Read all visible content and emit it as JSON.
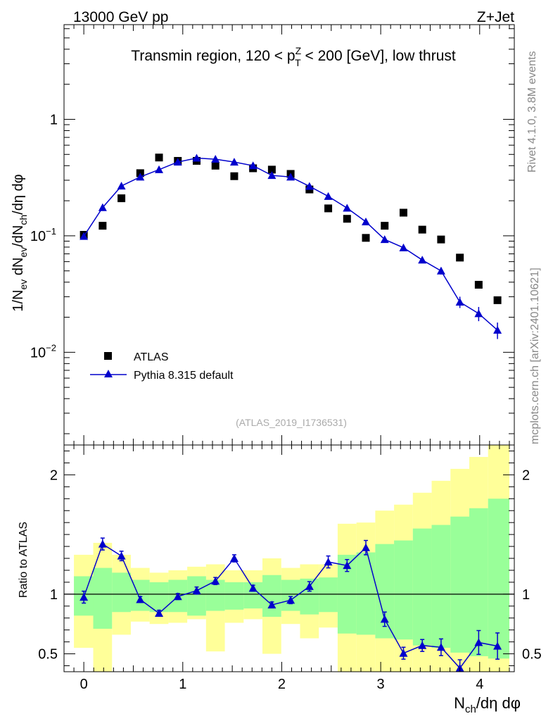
{
  "header": {
    "left": "13000 GeV pp",
    "right": "Z+Jet"
  },
  "side_labels": {
    "top": "Rivet 4.1.0,  3.8M events",
    "bottom": "mcplots.cern.ch [arXiv:2401.10621]"
  },
  "chart_data": [
    {
      "type": "scatter",
      "panel": "main",
      "title": {
        "pre": "Transmin region, 120 < p",
        "sup": "Z",
        "sub": "T",
        "post": " < 200 [GeV], low thrust"
      },
      "ylabel": {
        "p1": "1/N",
        "s1": "ev",
        "p2": " dN",
        "s2": "ev",
        "p3": "/dN",
        "s3": "ch",
        "p4": "/dη dφ"
      },
      "yscale": "log",
      "ylim": [
        0.0016,
        6.5
      ],
      "xlim": [
        -0.2,
        4.35
      ],
      "yticks": [
        {
          "value": 1,
          "label": "1"
        },
        {
          "value": 0.1,
          "label_base": "10",
          "label_exp": "−1"
        },
        {
          "value": 0.01,
          "label_base": "10",
          "label_exp": "−2"
        }
      ],
      "watermark": "(ATLAS_2019_I1736531)",
      "legend": {
        "position": "bottom-left",
        "entries": [
          "ATLAS",
          "Pythia 8.315 default"
        ]
      },
      "series": [
        {
          "name": "ATLAS",
          "marker": "square",
          "color": "#000000",
          "x": [
            0.0,
            0.19,
            0.38,
            0.57,
            0.76,
            0.95,
            1.14,
            1.33,
            1.52,
            1.71,
            1.9,
            2.09,
            2.28,
            2.47,
            2.66,
            2.85,
            3.04,
            3.23,
            3.42,
            3.61,
            3.8,
            3.99,
            4.18
          ],
          "y": [
            0.102,
            0.122,
            0.21,
            0.345,
            0.47,
            0.44,
            0.44,
            0.4,
            0.325,
            0.38,
            0.37,
            0.34,
            0.25,
            0.172,
            0.14,
            0.096,
            0.122,
            0.158,
            0.113,
            0.093,
            0.065,
            0.038,
            0.028
          ]
        },
        {
          "name": "Pythia 8.315 default",
          "marker": "triangle",
          "color": "#0000cc",
          "x": [
            0.0,
            0.19,
            0.38,
            0.57,
            0.76,
            0.95,
            1.14,
            1.33,
            1.52,
            1.71,
            1.9,
            2.09,
            2.28,
            2.47,
            2.66,
            2.85,
            3.04,
            3.23,
            3.42,
            3.61,
            3.8,
            3.99,
            4.18
          ],
          "y": [
            0.099,
            0.175,
            0.268,
            0.32,
            0.37,
            0.43,
            0.465,
            0.455,
            0.43,
            0.4,
            0.33,
            0.32,
            0.266,
            0.218,
            0.173,
            0.132,
            0.093,
            0.079,
            0.062,
            0.05,
            0.027,
            0.0215,
            0.0155
          ],
          "err": [
            0.004,
            0.005,
            0.006,
            0.007,
            0.007,
            0.008,
            0.008,
            0.008,
            0.008,
            0.008,
            0.007,
            0.007,
            0.006,
            0.006,
            0.005,
            0.005,
            0.004,
            0.004,
            0.0035,
            0.0035,
            0.003,
            0.003,
            0.0025
          ]
        }
      ]
    },
    {
      "type": "line",
      "panel": "ratio",
      "ylabel": "Ratio to ATLAS",
      "xlabel": {
        "p1": "N",
        "s1": "ch",
        "p2": "/dη dφ"
      },
      "xlim": [
        -0.2,
        4.35
      ],
      "ylim": [
        0.35,
        2.25
      ],
      "yticks": [
        0.5,
        1,
        2
      ],
      "xticks": [
        0,
        1,
        2,
        3,
        4
      ],
      "reference": 1,
      "bands": {
        "edges": [
          -0.1,
          0.095,
          0.285,
          0.475,
          0.665,
          0.855,
          1.045,
          1.235,
          1.425,
          1.615,
          1.805,
          1.995,
          2.185,
          2.375,
          2.565,
          2.755,
          2.945,
          3.135,
          3.325,
          3.515,
          3.705,
          3.895,
          4.085,
          4.3
        ],
        "inner_low": [
          0.82,
          0.71,
          0.85,
          0.86,
          0.85,
          0.85,
          0.82,
          0.86,
          0.87,
          0.88,
          0.81,
          0.86,
          0.83,
          0.85,
          0.67,
          0.66,
          0.63,
          0.62,
          0.57,
          0.55,
          0.51,
          0.48,
          0.46
        ],
        "inner_high": [
          1.15,
          1.22,
          1.18,
          1.12,
          1.1,
          1.12,
          1.15,
          1.12,
          1.1,
          1.1,
          1.16,
          1.12,
          1.13,
          1.14,
          1.33,
          1.35,
          1.42,
          1.45,
          1.55,
          1.58,
          1.65,
          1.72,
          1.8
        ],
        "outer_low": [
          0.55,
          0.18,
          0.66,
          0.77,
          0.75,
          0.76,
          0.79,
          0.52,
          0.76,
          0.79,
          0.5,
          0.75,
          0.63,
          0.72,
          0.28,
          0.28,
          0.28,
          0.28,
          0.28,
          0.28,
          0.28,
          0.28,
          0.28
        ],
        "outer_high": [
          1.33,
          1.43,
          1.33,
          1.22,
          1.18,
          1.2,
          1.23,
          1.25,
          1.2,
          1.2,
          1.3,
          1.22,
          1.25,
          1.25,
          1.59,
          1.6,
          1.7,
          1.75,
          1.85,
          1.95,
          2.05,
          2.15,
          2.25
        ]
      },
      "series": [
        {
          "name": "Pythia 8.315 default",
          "marker": "triangle",
          "color": "#0000cc",
          "x": [
            0.0,
            0.19,
            0.38,
            0.57,
            0.76,
            0.95,
            1.14,
            1.33,
            1.52,
            1.71,
            1.9,
            2.09,
            2.28,
            2.47,
            2.66,
            2.85,
            3.04,
            3.23,
            3.42,
            3.61,
            3.8,
            3.99,
            4.18
          ],
          "y": [
            0.975,
            1.42,
            1.32,
            0.955,
            0.84,
            0.98,
            1.03,
            1.11,
            1.3,
            1.05,
            0.91,
            0.95,
            1.065,
            1.27,
            1.24,
            1.39,
            0.79,
            0.505,
            0.57,
            0.555,
            0.38,
            0.595,
            0.565
          ],
          "err": [
            0.05,
            0.05,
            0.04,
            0.025,
            0.025,
            0.025,
            0.03,
            0.03,
            0.03,
            0.025,
            0.025,
            0.03,
            0.04,
            0.05,
            0.05,
            0.06,
            0.06,
            0.05,
            0.05,
            0.07,
            0.07,
            0.1,
            0.11
          ]
        }
      ]
    }
  ]
}
